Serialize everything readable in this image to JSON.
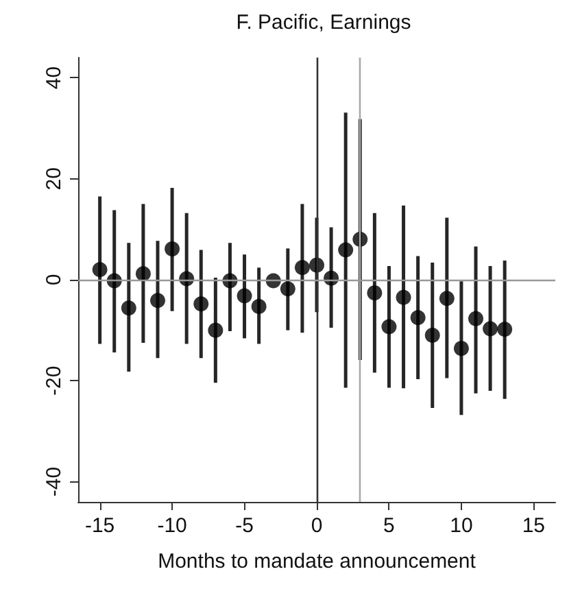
{
  "chart_data": {
    "type": "scatter",
    "title": "F. Pacific, Earnings",
    "xlabel": "Months to mandate announcement",
    "x": [
      -15,
      -14,
      -13,
      -12,
      -11,
      -10,
      -9,
      -8,
      -7,
      -6,
      -5,
      -4,
      -3,
      -2,
      -1,
      0,
      1,
      2,
      3,
      4,
      5,
      6,
      7,
      8,
      9,
      10,
      11,
      12,
      13
    ],
    "series": [
      {
        "color": "#000000",
        "values": [
          2.0,
          -0.2,
          -5.6,
          1.2,
          -4.1,
          6.1,
          0.2,
          -4.8,
          -10,
          -0.2,
          -3.2,
          -5.3,
          -0.2,
          -1.8,
          2.4,
          2.9,
          0.3,
          5.9,
          8,
          -2.6,
          -9.3,
          -3.5,
          -7.5,
          -11,
          -3.7,
          -13.6,
          -7.7,
          -9.7,
          -9.8
        ],
        "errors": [
          [
            -12.7,
            16.5
          ],
          [
            -14.4,
            13.8
          ],
          [
            -18.2,
            7.3
          ],
          [
            -12.5,
            15
          ],
          [
            -15.5,
            7.7
          ],
          [
            -6.2,
            18.2
          ],
          [
            -12.7,
            13.2
          ],
          [
            -15.5,
            5.9
          ],
          [
            -20.4,
            0.4
          ],
          [
            -10.2,
            7.3
          ],
          [
            -11.6,
            5
          ],
          [
            -12.7,
            2.4
          ],
          null,
          [
            -10,
            6.2
          ],
          [
            -10.5,
            15
          ],
          [
            -6.4,
            12.3
          ],
          [
            -9.5,
            10.4
          ],
          [
            -21.4,
            33.1
          ],
          [
            -15.9,
            31.8
          ],
          [
            -18.4,
            13.2
          ],
          [
            -21.4,
            2.7
          ],
          [
            -21.5,
            14.7
          ],
          [
            -19.7,
            4.7
          ],
          [
            -25.4,
            3.4
          ],
          [
            -19.5,
            12.3
          ],
          [
            -26.8,
            -0.3
          ],
          [
            -22.5,
            6.6
          ],
          [
            -22,
            2.7
          ],
          [
            -23.6,
            3.8
          ]
        ]
      }
    ],
    "xlim": [
      -16.5,
      16.5
    ],
    "xticks": [
      -15,
      -10,
      -5,
      0,
      5,
      10,
      15
    ],
    "ylim": [
      -44,
      44
    ],
    "yticks": [
      -40,
      -20,
      0,
      20,
      40
    ],
    "ref_lines": [
      {
        "axis": "x",
        "value": 0,
        "color": "#333333"
      },
      {
        "axis": "x",
        "value": 3,
        "color": "#aaaaaa"
      },
      {
        "axis": "y",
        "value": 0,
        "color": "#999999"
      }
    ],
    "marker": "circle",
    "grid": false
  }
}
